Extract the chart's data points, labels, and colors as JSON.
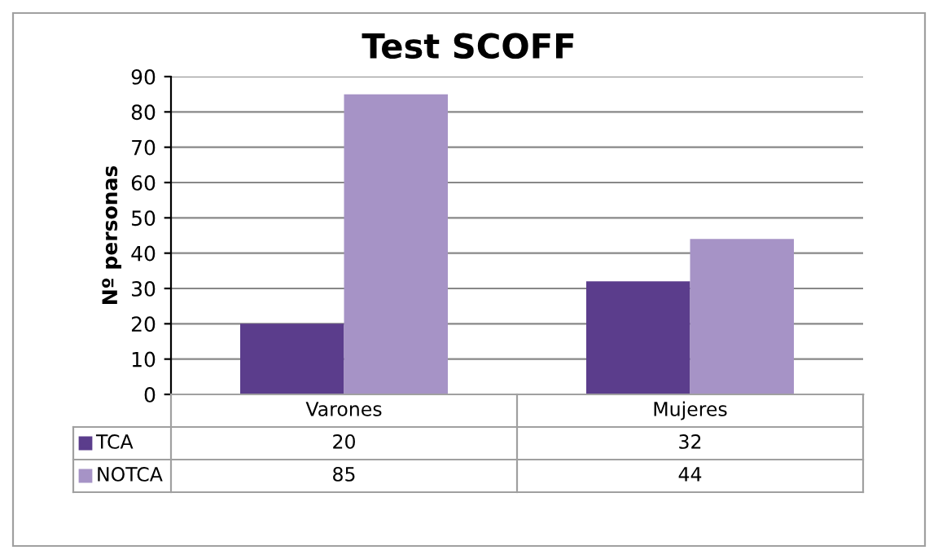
{
  "chart_data": {
    "type": "bar",
    "title": "Test SCOFF",
    "ylabel": "Nº personas",
    "categories": [
      "Varones",
      "Mujeres"
    ],
    "series": [
      {
        "name": "TCA",
        "color": "#5b3d8c",
        "values": [
          20,
          32
        ]
      },
      {
        "name": "NOTCA",
        "color": "#a693c6",
        "values": [
          85,
          44
        ]
      }
    ],
    "ylim": [
      0,
      90
    ],
    "yticks": [
      0,
      10,
      20,
      30,
      40,
      50,
      60,
      70,
      80,
      90
    ],
    "grid": "y",
    "data_labels": true,
    "legend": "bottom"
  }
}
